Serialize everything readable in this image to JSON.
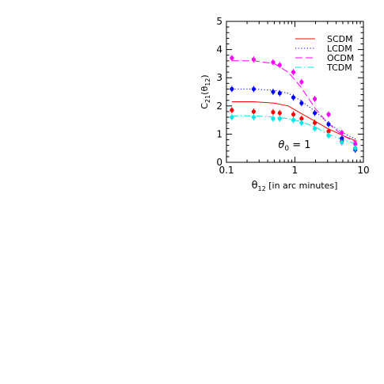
{
  "chart_data": {
    "type": "scatter",
    "xscale": "log",
    "xlim": [
      0.1,
      10
    ],
    "ylim": [
      0,
      5
    ],
    "x_ticks": [
      0.1,
      1,
      10
    ],
    "x_tick_labels": [
      "0.1",
      "1",
      "10"
    ],
    "y_ticks": [
      0,
      1,
      2,
      3,
      4,
      5
    ],
    "y_tick_labels": [
      "0",
      "1",
      "2",
      "3",
      "4",
      "5"
    ],
    "xlabel": "θ12 [in arc minutes]",
    "ylabel": "C21(θ12)",
    "annotation": "θ0 = 1",
    "legend_position": "top-right",
    "grid": false,
    "series": [
      {
        "name": "SCDM",
        "color": "#ff0000",
        "line_style": "solid",
        "curve": {
          "x": [
            0.12,
            0.25,
            0.5,
            0.8,
            1.2,
            2,
            3,
            5,
            8
          ],
          "y": [
            2.15,
            2.15,
            2.1,
            2.0,
            1.75,
            1.45,
            1.2,
            0.95,
            0.75
          ]
        },
        "points": {
          "x": [
            0.12,
            0.25,
            0.48,
            0.6,
            0.95,
            1.25,
            1.95,
            3.1,
            4.85,
            7.6
          ],
          "y": [
            1.85,
            1.8,
            1.78,
            1.75,
            1.7,
            1.55,
            1.4,
            1.1,
            0.75,
            0.5
          ]
        }
      },
      {
        "name": "LCDM",
        "color": "#0000ff",
        "line_style": "dotted",
        "curve": {
          "x": [
            0.12,
            0.25,
            0.5,
            0.8,
            1.2,
            2,
            3,
            5,
            8
          ],
          "y": [
            2.6,
            2.6,
            2.55,
            2.45,
            2.2,
            1.8,
            1.4,
            1.05,
            0.8
          ]
        },
        "points": {
          "x": [
            0.12,
            0.25,
            0.48,
            0.6,
            0.95,
            1.25,
            1.95,
            3.1,
            4.85,
            7.6
          ],
          "y": [
            2.6,
            2.6,
            2.5,
            2.45,
            2.3,
            2.1,
            1.75,
            1.35,
            0.85,
            0.45
          ]
        }
      },
      {
        "name": "OCDM",
        "color": "#ff00ff",
        "line_style": "dashed",
        "curve": {
          "x": [
            0.12,
            0.25,
            0.5,
            0.8,
            1.2,
            2,
            3,
            5,
            8
          ],
          "y": [
            3.6,
            3.6,
            3.5,
            3.2,
            2.7,
            1.9,
            1.4,
            0.95,
            0.7
          ]
        },
        "points": {
          "x": [
            0.12,
            0.25,
            0.48,
            0.6,
            0.95,
            1.25,
            1.95,
            3.1,
            4.85,
            7.6
          ],
          "y": [
            3.7,
            3.65,
            3.55,
            3.45,
            3.2,
            2.85,
            2.25,
            1.7,
            1.05,
            0.65
          ]
        }
      },
      {
        "name": "TCDM",
        "color": "#00e5e5",
        "line_style": "dash-dot",
        "curve": {
          "x": [
            0.12,
            0.25,
            0.5,
            0.8,
            1.2,
            2,
            3,
            5,
            8
          ],
          "y": [
            1.65,
            1.65,
            1.6,
            1.55,
            1.45,
            1.25,
            1.0,
            0.8,
            0.65
          ]
        },
        "points": {
          "x": [
            0.12,
            0.25,
            0.48,
            0.6,
            0.95,
            1.25,
            1.95,
            3.1,
            4.85,
            7.6
          ],
          "y": [
            1.6,
            1.6,
            1.55,
            1.55,
            1.5,
            1.4,
            1.2,
            0.95,
            0.7,
            0.5
          ]
        }
      }
    ]
  }
}
